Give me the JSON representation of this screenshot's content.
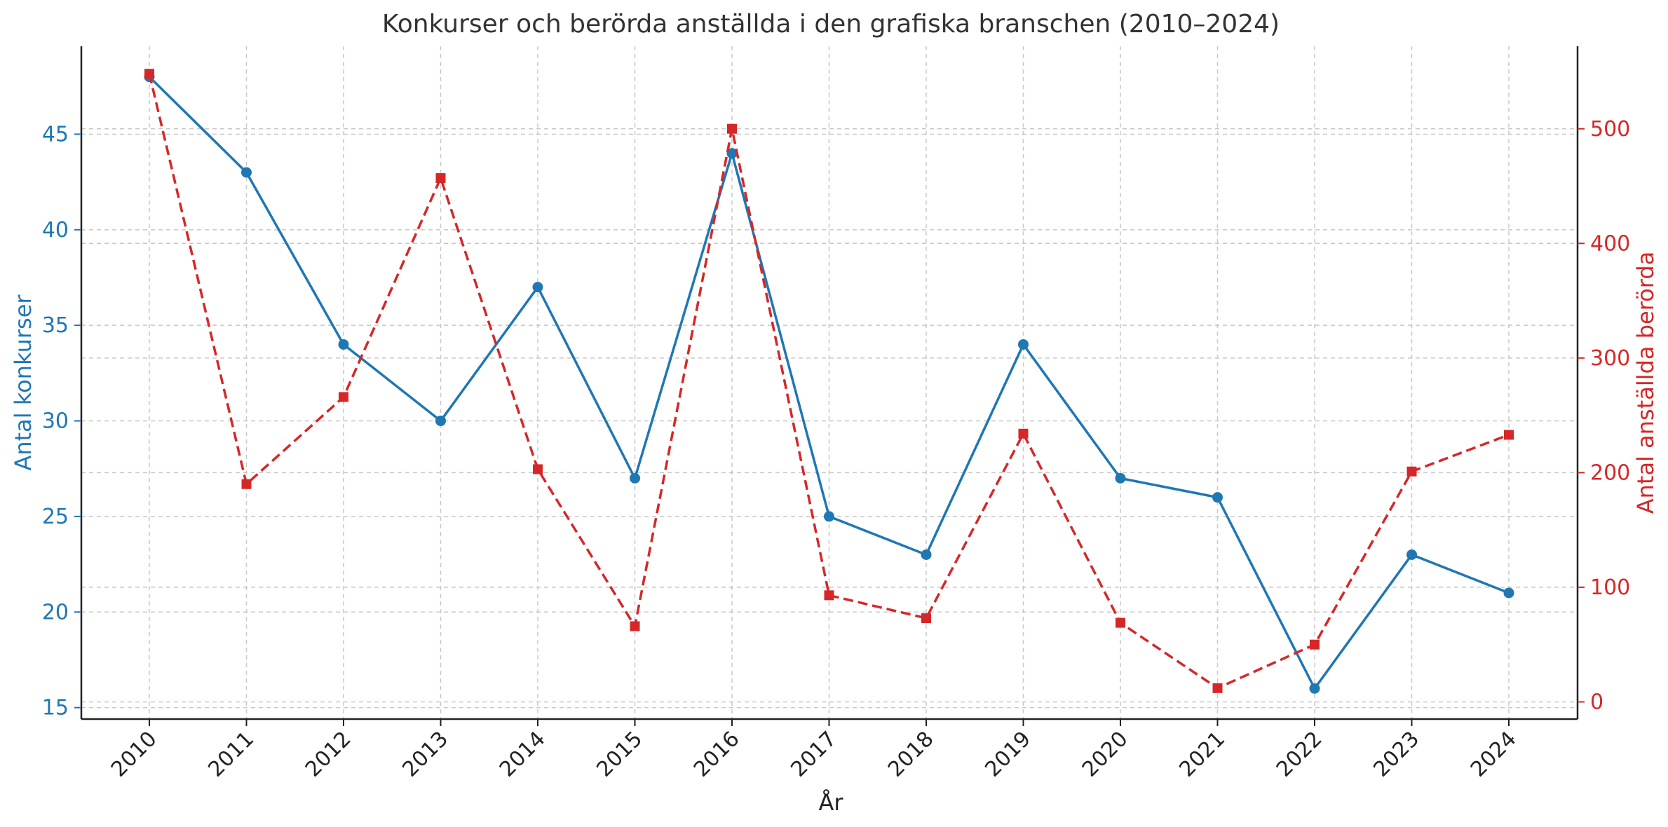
{
  "chart_data": {
    "type": "line",
    "title": "Konkurser och berörda anställda i den grafiska branschen (2010–2024)",
    "xlabel": "År",
    "ylabel_left": "Antal konkurser",
    "ylabel_right": "Antal anställda berörda",
    "categories": [
      "2010",
      "2011",
      "2012",
      "2013",
      "2014",
      "2015",
      "2016",
      "2017",
      "2018",
      "2019",
      "2020",
      "2021",
      "2022",
      "2023",
      "2024"
    ],
    "ylim_left": [
      14.4,
      49.6
    ],
    "yticks_left": [
      15,
      20,
      25,
      30,
      35,
      40,
      45
    ],
    "ylim_right": [
      -15,
      572
    ],
    "yticks_right": [
      0,
      100,
      200,
      300,
      400,
      500
    ],
    "grid": true,
    "series": [
      {
        "name": "Antal konkurser",
        "axis": "left",
        "color": "#1f77b4",
        "style": "solid",
        "marker": "circle",
        "values": [
          48,
          43,
          34,
          30,
          37,
          27,
          44,
          25,
          23,
          34,
          27,
          26,
          16,
          23,
          21
        ]
      },
      {
        "name": "Antal anställda berörda",
        "axis": "right",
        "color": "#d62728",
        "style": "dashed",
        "marker": "square",
        "values": [
          548,
          190,
          266,
          457,
          203,
          66,
          500,
          93,
          73,
          234,
          69,
          12,
          50,
          201,
          233
        ]
      }
    ]
  }
}
